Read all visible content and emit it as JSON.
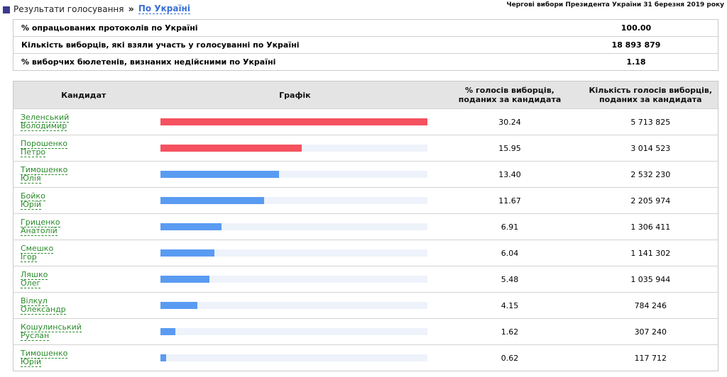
{
  "breadcrumb": {
    "first": "Результати голосування",
    "separator": "»",
    "current": "По Україні"
  },
  "election_title": "Чергові вибори Президента України 31 березня 2019 року",
  "summary": [
    {
      "label": "% опрацьованих протоколів по Україні",
      "value": "100.00"
    },
    {
      "label": "Кількість виборців, які взяли участь у голосуванні по Україні",
      "value": "18 893 879"
    },
    {
      "label": "% виборчих бюлетенів, визнаних недійсними по Україні",
      "value": "1.18"
    }
  ],
  "table": {
    "headers": {
      "candidate": "Кандидат",
      "graph": "Графік",
      "percent_line1": "% голосів виборців,",
      "percent_line2": "поданих за кандидата",
      "count_line1": "Кількість голосів виборців,",
      "count_line2": "поданих за кандидата"
    },
    "rows": [
      {
        "surname": "Зеленський",
        "firstname": "Володимир",
        "percent": "30.24",
        "count": "5 713 825",
        "bar_pct": 30.24,
        "color": "#f5515f"
      },
      {
        "surname": "Порошенко",
        "firstname": "Петро",
        "percent": "15.95",
        "count": "3 014 523",
        "bar_pct": 15.95,
        "color": "#f5515f"
      },
      {
        "surname": "Тимошенко",
        "firstname": "Юлія",
        "percent": "13.40",
        "count": "2 532 230",
        "bar_pct": 13.4,
        "color": "#5a9bf2"
      },
      {
        "surname": "Бойко",
        "firstname": "Юрій",
        "percent": "11.67",
        "count": "2 205 974",
        "bar_pct": 11.67,
        "color": "#5a9bf2"
      },
      {
        "surname": "Гриценко",
        "firstname": "Анатолій",
        "percent": "6.91",
        "count": "1 306 411",
        "bar_pct": 6.91,
        "color": "#5a9bf2"
      },
      {
        "surname": "Смешко",
        "firstname": "Ігор",
        "percent": "6.04",
        "count": "1 141 302",
        "bar_pct": 6.04,
        "color": "#5a9bf2"
      },
      {
        "surname": "Ляшко",
        "firstname": "Олег",
        "percent": "5.48",
        "count": "1 035 944",
        "bar_pct": 5.48,
        "color": "#5a9bf2"
      },
      {
        "surname": "Вілкул",
        "firstname": "Олександр",
        "percent": "4.15",
        "count": "784 246",
        "bar_pct": 4.15,
        "color": "#5a9bf2"
      },
      {
        "surname": "Кошулинський",
        "firstname": "Руслан",
        "percent": "1.62",
        "count": "307 240",
        "bar_pct": 1.62,
        "color": "#5a9bf2"
      },
      {
        "surname": "Тимошенко",
        "firstname": "Юрій",
        "percent": "0.62",
        "count": "117 712",
        "bar_pct": 0.62,
        "color": "#5a9bf2"
      }
    ]
  }
}
